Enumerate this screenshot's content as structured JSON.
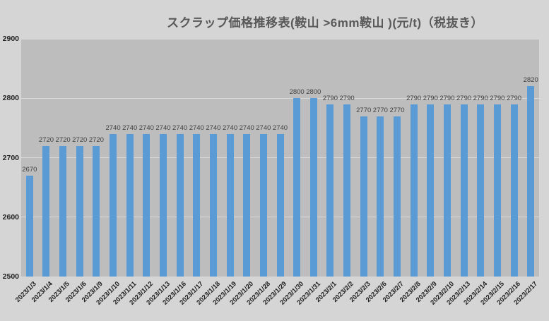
{
  "chart_data": {
    "type": "bar",
    "title": "スクラップ価格推移表(鞍山 >6mm鞍山 )(元/t)（税抜き）",
    "categories": [
      "2023/1/3",
      "2023/1/4",
      "2023/1/5",
      "2023/1/6",
      "2023/1/9",
      "2023/1/10",
      "2023/1/11",
      "2023/1/12",
      "2023/1/13",
      "2023/1/16",
      "2023/1/17",
      "2023/1/18",
      "2023/1/19",
      "2023/1/20",
      "2023/1/28",
      "2023/1/29",
      "2023/1/30",
      "2023/1/31",
      "2023/2/1",
      "2023/2/2",
      "2023/2/3",
      "2023/2/6",
      "2023/2/7",
      "2023/2/8",
      "2023/2/9",
      "2023/2/10",
      "2023/2/13",
      "2023/2/14",
      "2023/2/15",
      "2023/2/16",
      "2023/2/17"
    ],
    "values": [
      2670,
      2720,
      2720,
      2720,
      2720,
      2740,
      2740,
      2740,
      2740,
      2740,
      2740,
      2740,
      2740,
      2740,
      2740,
      2740,
      2800,
      2800,
      2790,
      2790,
      2770,
      2770,
      2770,
      2790,
      2790,
      2790,
      2790,
      2790,
      2790,
      2790,
      2820
    ],
    "xlabel": "",
    "ylabel": "",
    "ylim": [
      2500,
      2900
    ],
    "y_ticks": [
      2500,
      2600,
      2700,
      2800,
      2900
    ],
    "grid": true,
    "legend_position": "none",
    "data_labels": true
  },
  "colors": {
    "page_bg": "#d5d5d5",
    "plot_bg": "#bdbdbd",
    "bar": "#5b9bd5",
    "gridline": "#d9d9d9",
    "title_text": "#595959",
    "data_label_text": "#404040",
    "axis_label_text": "#1f1f1f"
  }
}
